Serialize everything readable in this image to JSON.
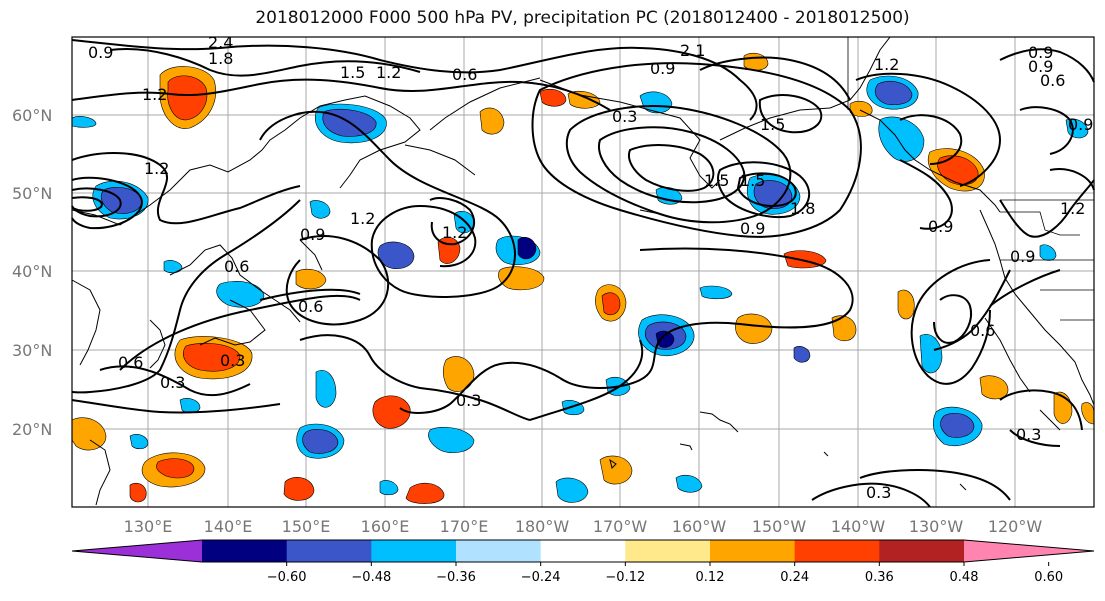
{
  "title": "2018012000 F000 500 hPa PV, precipitation PC (2018012400 - 2018012500)",
  "lat_labels": [
    "60°N",
    "50°N",
    "40°N",
    "30°N",
    "20°N"
  ],
  "lon_labels": [
    "130°E",
    "140°E",
    "150°E",
    "160°E",
    "170°E",
    "180°W",
    "170°W",
    "160°W",
    "150°W",
    "140°W",
    "130°W",
    "120°W"
  ],
  "contour_labels": [
    "0.9",
    "2.4",
    "1.8",
    "1.5",
    "1.2",
    "0.6",
    "2.1",
    "0.9",
    "1.2",
    "0.9",
    "0.6",
    "1.5",
    "1.2",
    "0.3",
    "1.2",
    "1.5",
    "1.8",
    "0.9",
    "0.9",
    "0.6",
    "0.3",
    "0.6",
    "0.9",
    "1.2",
    "1.5",
    "0.9",
    "0.6",
    "0.3",
    "0.3",
    "0.3",
    "0.9",
    "0.9",
    "0.3",
    "0.6",
    "1.2",
    "1.2"
  ],
  "colorbar": {
    "colors": [
      "#9b30d9",
      "#000080",
      "#3a56c8",
      "#00bfff",
      "#b0e2ff",
      "#ffffff",
      "#ffe98a",
      "#ffa500",
      "#ff4000",
      "#b22222",
      "#ff85b0"
    ],
    "tick_labels": [
      "−0.60",
      "−0.48",
      "−0.36",
      "−0.24",
      "−0.12",
      "0.12",
      "0.24",
      "0.36",
      "0.48",
      "0.60"
    ]
  }
}
